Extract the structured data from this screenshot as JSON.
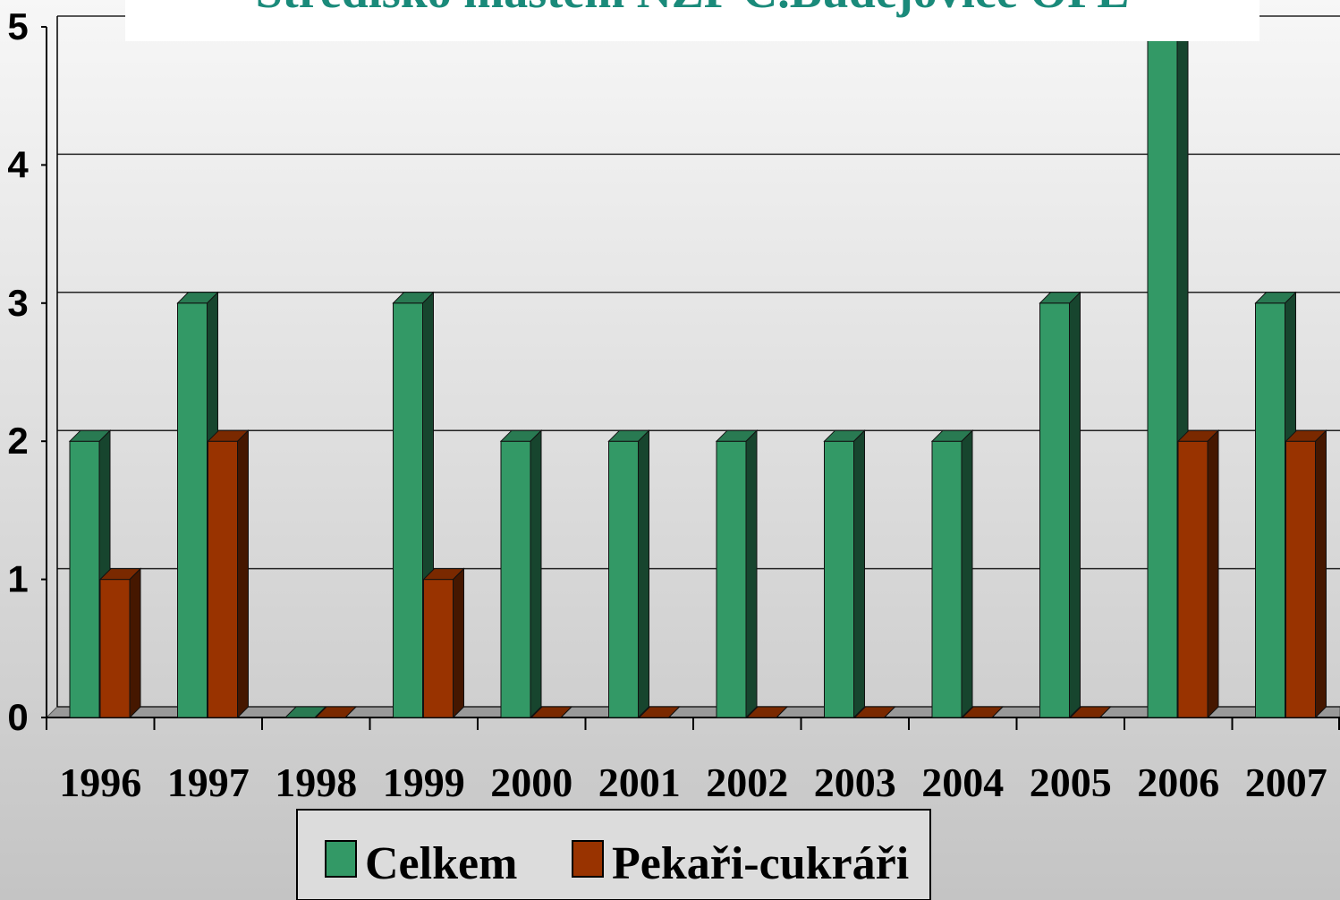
{
  "chart_data": {
    "type": "bar3d",
    "title": "Středisko mastem NZP Č.Budějovice OPL",
    "categories": [
      "1996",
      "1997",
      "1998",
      "1999",
      "2000",
      "2001",
      "2002",
      "2003",
      "2004",
      "2005",
      "2006",
      "2007"
    ],
    "series": [
      {
        "name": "Celkem",
        "color": "#339966",
        "values": [
          2,
          3,
          0,
          3,
          2,
          2,
          2,
          2,
          2,
          3,
          5,
          3
        ]
      },
      {
        "name": "Pekaři-cukráři",
        "color": "#993300",
        "values": [
          1,
          2,
          0,
          1,
          0,
          0,
          0,
          0,
          0,
          0,
          2,
          2
        ]
      }
    ],
    "ylim": [
      0,
      5
    ],
    "yticks": [
      0,
      1,
      2,
      3,
      4,
      5
    ],
    "grid": true,
    "legend": "bottom"
  }
}
